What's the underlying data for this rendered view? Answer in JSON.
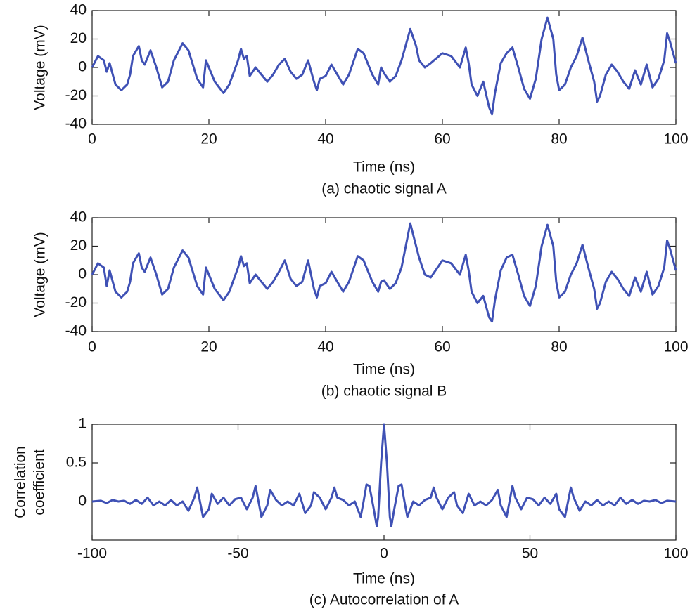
{
  "chart_data": [
    {
      "type": "line",
      "xlabel": "Time (ns)",
      "ylabel": "Voltage (mV)",
      "caption": "(a) chaotic signal A",
      "xlim": [
        0,
        100
      ],
      "xticks": [
        0,
        20,
        40,
        60,
        80,
        100
      ],
      "ylim": [
        -40,
        40
      ],
      "yticks": [
        -40,
        -20,
        0,
        20,
        40
      ],
      "series": [
        {
          "color": "#3f51b5",
          "x": [
            0,
            1,
            2,
            2.5,
            3,
            4,
            5,
            6,
            6.5,
            7,
            8,
            8.5,
            9,
            10,
            11,
            12,
            13,
            14,
            15.5,
            16.5,
            18,
            19,
            19.5,
            20,
            21,
            22.5,
            23.5,
            25,
            25.5,
            26,
            26.5,
            27,
            28,
            29,
            30,
            31,
            32,
            33,
            34,
            35,
            36,
            37,
            38,
            38.5,
            39,
            40,
            41,
            42,
            43,
            44,
            45.5,
            46.5,
            48,
            49,
            49.5,
            50,
            51,
            52,
            53,
            54.5,
            55.5,
            56,
            57,
            58,
            60,
            61.5,
            63,
            64,
            64.5,
            65,
            66,
            67,
            68,
            68.5,
            69,
            70,
            71,
            72,
            73,
            74,
            75,
            76,
            77,
            78,
            79,
            79.5,
            80,
            81,
            82,
            83,
            84,
            85,
            86,
            86.5,
            87,
            88,
            89,
            90,
            91,
            92,
            93,
            94,
            95,
            96,
            97,
            98,
            98.5,
            99,
            100
          ],
          "values": [
            0,
            8,
            5,
            -3,
            3,
            -12,
            -16,
            -12,
            -5,
            8,
            15,
            5,
            2,
            12,
            0,
            -14,
            -10,
            5,
            17,
            12,
            -8,
            -14,
            5,
            0,
            -10,
            -18,
            -12,
            5,
            13,
            6,
            8,
            -6,
            0,
            -5,
            -10,
            -5,
            2,
            6,
            -3,
            -8,
            -5,
            5,
            -10,
            -16,
            -8,
            -6,
            2,
            -5,
            -12,
            -5,
            13,
            10,
            -5,
            -12,
            0,
            -4,
            -10,
            -6,
            5,
            27,
            15,
            5,
            0,
            3,
            10,
            8,
            0,
            14,
            3,
            -12,
            -20,
            -10,
            -28,
            -33,
            -18,
            3,
            10,
            14,
            0,
            -15,
            -22,
            -8,
            20,
            35,
            20,
            -5,
            -16,
            -12,
            0,
            8,
            21,
            5,
            -10,
            -24,
            -20,
            -5,
            2,
            -3,
            -10,
            -15,
            -2,
            -12,
            2,
            -14,
            -8,
            5,
            24,
            18,
            3
          ]
        }
      ]
    },
    {
      "type": "line",
      "xlabel": "Time (ns)",
      "ylabel": "Voltage (mV)",
      "caption": "(b) chaotic signal B",
      "xlim": [
        0,
        100
      ],
      "xticks": [
        0,
        20,
        40,
        60,
        80,
        100
      ],
      "ylim": [
        -40,
        40
      ],
      "yticks": [
        -40,
        -20,
        0,
        20,
        40
      ],
      "series": [
        {
          "color": "#3f51b5",
          "x": [
            0,
            1,
            2,
            2.5,
            3,
            4,
            5,
            6,
            6.5,
            7,
            8,
            8.5,
            9,
            10,
            11,
            12,
            13,
            14,
            15.5,
            16.5,
            18,
            19,
            19.5,
            20,
            21,
            22.5,
            23.5,
            25,
            25.5,
            26,
            26.5,
            27,
            28,
            29,
            30,
            31,
            32,
            33,
            34,
            35,
            36,
            37,
            38,
            38.5,
            39,
            40,
            41,
            42,
            43,
            44,
            45.5,
            46.5,
            48,
            49,
            49.5,
            50,
            51,
            52,
            53,
            54.5,
            55.5,
            56,
            57,
            58,
            60,
            61.5,
            63,
            64,
            64.5,
            65,
            66,
            67,
            68,
            68.5,
            69,
            70,
            71,
            72,
            73,
            74,
            75,
            76,
            77,
            78,
            79,
            79.5,
            80,
            81,
            82,
            83,
            84,
            85,
            86,
            86.5,
            87,
            88,
            89,
            90,
            91,
            92,
            93,
            94,
            95,
            96,
            97,
            98,
            98.5,
            99,
            100
          ],
          "values": [
            0,
            8,
            5,
            -8,
            3,
            -12,
            -16,
            -12,
            -5,
            8,
            15,
            5,
            2,
            12,
            0,
            -14,
            -10,
            5,
            17,
            12,
            -8,
            -14,
            5,
            0,
            -10,
            -18,
            -12,
            5,
            13,
            6,
            8,
            -6,
            0,
            -5,
            -10,
            -5,
            2,
            10,
            -3,
            -8,
            -5,
            10,
            -10,
            -16,
            -8,
            -6,
            2,
            -5,
            -12,
            -5,
            13,
            10,
            -5,
            -12,
            -5,
            -4,
            -10,
            -6,
            5,
            36,
            20,
            12,
            0,
            -2,
            10,
            8,
            0,
            14,
            3,
            -12,
            -20,
            -15,
            -30,
            -33,
            -18,
            3,
            12,
            14,
            0,
            -15,
            -22,
            -8,
            20,
            35,
            20,
            -5,
            -16,
            -12,
            0,
            8,
            21,
            5,
            -10,
            -24,
            -20,
            -5,
            2,
            -3,
            -10,
            -15,
            -2,
            -12,
            2,
            -14,
            -8,
            5,
            24,
            18,
            3
          ]
        }
      ]
    },
    {
      "type": "line",
      "xlabel": "Time (ns)",
      "ylabel": [
        "Correlation",
        "coefficient"
      ],
      "caption": "(c) Autocorrelation of A",
      "xlim": [
        -100,
        100
      ],
      "xticks": [
        -100,
        -50,
        0,
        50,
        100
      ],
      "ylim": [
        -0.5,
        1
      ],
      "yticks": [
        0,
        0.5,
        1
      ],
      "series": [
        {
          "color": "#3f51b5",
          "x": [
            -100,
            -97,
            -95,
            -93,
            -91,
            -89,
            -87,
            -85,
            -83,
            -81,
            -79,
            -77,
            -75,
            -73,
            -71,
            -69,
            -67,
            -65,
            -64,
            -62,
            -60,
            -59,
            -57,
            -55,
            -53,
            -51,
            -49,
            -47,
            -45,
            -44,
            -42,
            -40,
            -39,
            -37,
            -35,
            -33,
            -31,
            -29,
            -27,
            -25,
            -24,
            -22,
            -20,
            -18,
            -17,
            -16,
            -14,
            -12,
            -10,
            -9,
            -8,
            -7,
            -6,
            -5,
            -3.5,
            -2.5,
            -2,
            -1,
            0,
            1,
            2,
            2.5,
            3.5,
            5,
            6,
            7,
            8,
            9,
            10,
            12,
            14,
            16,
            17,
            18,
            20,
            22,
            24,
            25,
            27,
            29,
            31,
            33,
            35,
            37,
            39,
            40,
            42,
            44,
            45,
            47,
            49,
            51,
            53,
            55,
            57,
            59,
            60,
            62,
            64,
            65,
            67,
            69,
            71,
            73,
            75,
            77,
            79,
            81,
            83,
            85,
            87,
            89,
            91,
            93,
            95,
            97,
            100
          ],
          "values": [
            0,
            0.01,
            -0.02,
            0.02,
            0,
            0.01,
            -0.03,
            0.02,
            -0.03,
            0.05,
            -0.05,
            0,
            -0.05,
            0.02,
            -0.05,
            0,
            -0.12,
            0.05,
            0.18,
            -0.2,
            -0.1,
            0.1,
            -0.03,
            0.05,
            -0.05,
            0.03,
            0.05,
            -0.1,
            0.05,
            0.2,
            -0.2,
            -0.05,
            0.15,
            0.02,
            -0.05,
            0,
            -0.05,
            0.1,
            -0.15,
            -0.05,
            0.12,
            0.05,
            -0.1,
            0.05,
            0.18,
            0.05,
            0.02,
            -0.05,
            0,
            -0.1,
            -0.2,
            0,
            0.22,
            0.2,
            -0.1,
            -0.32,
            -0.2,
            0.5,
            1,
            0.5,
            -0.2,
            -0.32,
            -0.1,
            0.2,
            0.22,
            0,
            -0.2,
            -0.1,
            0,
            -0.05,
            0.02,
            0.05,
            0.18,
            0.05,
            -0.1,
            0.05,
            0.12,
            -0.05,
            -0.15,
            0.1,
            -0.05,
            0,
            -0.05,
            0.02,
            0.15,
            -0.05,
            -0.2,
            0.2,
            0.05,
            -0.1,
            0.05,
            0.03,
            -0.05,
            0.05,
            -0.03,
            0.1,
            -0.1,
            -0.2,
            0.18,
            0.05,
            -0.12,
            0,
            -0.05,
            0.02,
            -0.05,
            0,
            -0.05,
            0.05,
            -0.03,
            0.02,
            -0.03,
            0.01,
            0,
            0.02,
            -0.02,
            0.01,
            0
          ]
        }
      ]
    }
  ]
}
